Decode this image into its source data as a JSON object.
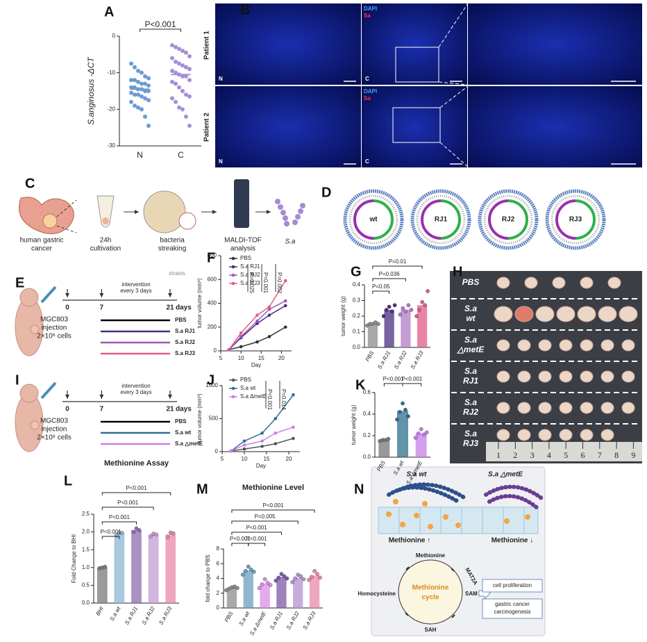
{
  "panel_letters": [
    "A",
    "B",
    "C",
    "D",
    "E",
    "F",
    "G",
    "H",
    "I",
    "J",
    "K",
    "L",
    "M",
    "N"
  ],
  "chart_data": [
    {
      "type": "strip",
      "ylabel": "S.anginosus -ΔCT",
      "categories": [
        "N",
        "C"
      ],
      "colors": [
        "#6b9bd2",
        "#a58fd6"
      ],
      "points": [
        [
          -7.5,
          -8.5,
          -9.5,
          -10,
          -11,
          -11.5,
          -12,
          -12,
          -12.5,
          -13,
          -13,
          -13.5,
          -14,
          -14,
          -14.5,
          -14.5,
          -15,
          -15,
          -15.5,
          -16,
          -16,
          -16.5,
          -17,
          -17.5,
          -18,
          -19,
          -19.5,
          -20,
          -22,
          -24.5
        ],
        [
          -2.5,
          -3,
          -3.5,
          -4,
          -4.5,
          -5.5,
          -6,
          -7,
          -7.5,
          -8,
          -8.5,
          -9,
          -9.5,
          -10,
          -10.5,
          -11,
          -11,
          -12,
          -12.5,
          -13,
          -14,
          -15,
          -16,
          -16.5,
          -17,
          -18,
          -19.5,
          -20,
          -22,
          -24.5
        ]
      ],
      "means": [
        -14.5,
        -10.5
      ],
      "ylim": [
        -30,
        0
      ],
      "yticks": [
        0,
        -10,
        -20,
        -30
      ],
      "brackets": [
        {
          "label": "P<0.001",
          "pair": [
            0,
            1
          ]
        }
      ]
    },
    {
      "type": "line",
      "ylabel": "tumor volume (mm³)",
      "xlabel": "Day",
      "x": [
        7,
        10,
        14,
        17,
        21
      ],
      "xlim": [
        5,
        22.5
      ],
      "xticks": [
        5,
        10,
        15,
        20
      ],
      "ylim": [
        0,
        800
      ],
      "yticks": [
        0,
        200,
        400,
        600,
        800
      ],
      "series": [
        {
          "name": "PBS",
          "color": "#333333",
          "values": [
            10,
            35,
            75,
            120,
            200
          ]
        },
        {
          "name": "S.a RJ1",
          "color": "#4b2d7f",
          "values": [
            10,
            110,
            230,
            300,
            380
          ]
        },
        {
          "name": "S.a RJ2",
          "color": "#9b59b6",
          "values": [
            10,
            120,
            250,
            350,
            420
          ]
        },
        {
          "name": "S.a RJ3",
          "color": "#e05c8a",
          "values": [
            10,
            150,
            300,
            370,
            590
          ]
        }
      ],
      "annotations": [
        "P=0.025",
        "P<0.001",
        "P=0.002"
      ]
    },
    {
      "type": "bar",
      "ylabel": "tumor weight (g)",
      "categories": [
        "PBS",
        "S.a RJ1",
        "S.a RJ2",
        "S.a RJ3"
      ],
      "colors": [
        "#8c8c8c",
        "#4b2d7f",
        "#b07cc6",
        "#e05c8a"
      ],
      "values": [
        0.15,
        0.24,
        0.24,
        0.27
      ],
      "points": [
        [
          0.14,
          0.15,
          0.15,
          0.16,
          0.15
        ],
        [
          0.2,
          0.24,
          0.26,
          0.23,
          0.27
        ],
        [
          0.21,
          0.25,
          0.23,
          0.27,
          0.24
        ],
        [
          0.2,
          0.24,
          0.29,
          0.27,
          0.36
        ]
      ],
      "ylim": [
        0,
        0.4
      ],
      "yticks": [
        {
          "value": 0,
          "label": "0.0"
        },
        0.1,
        0.2,
        0.3,
        0.4
      ],
      "brackets": [
        {
          "label": "P=0.05",
          "pair": [
            0,
            1
          ]
        },
        {
          "label": "P=0.036",
          "pair": [
            0,
            2
          ]
        },
        {
          "label": "P=0.01",
          "pair": [
            0,
            3
          ]
        }
      ]
    },
    {
      "type": "line",
      "ylabel": "tumor volume (mm³)",
      "xlabel": "Day",
      "x": [
        7,
        10,
        14,
        17,
        21
      ],
      "xlim": [
        5,
        22.5
      ],
      "xticks": [
        5,
        10,
        15,
        20
      ],
      "ylim": [
        0,
        1000
      ],
      "yticks": [
        0,
        500,
        1000
      ],
      "series": [
        {
          "name": "PBS",
          "color": "#555555",
          "values": [
            10,
            40,
            80,
            120,
            200
          ]
        },
        {
          "name": "S.a wt",
          "color": "#2e6f8e",
          "values": [
            10,
            160,
            280,
            500,
            860
          ]
        },
        {
          "name": "S.a ΔmetE",
          "color": "#c77dea",
          "values": [
            10,
            100,
            160,
            280,
            370
          ]
        }
      ],
      "annotations": [
        "P<0.001",
        "P=0.014"
      ]
    },
    {
      "type": "bar",
      "ylabel": "tumor weight (g)",
      "categories": [
        "PBS",
        "S.a wt",
        "S.a ΔmetE"
      ],
      "colors": [
        "#777777",
        "#2e6f8e",
        "#c77dea"
      ],
      "values": [
        0.16,
        0.43,
        0.22
      ],
      "points": [
        [
          0.15,
          0.16,
          0.16,
          0.17
        ],
        [
          0.35,
          0.42,
          0.5,
          0.44,
          0.38
        ],
        [
          0.18,
          0.22,
          0.26,
          0.21,
          0.23
        ]
      ],
      "ylim": [
        0,
        0.6
      ],
      "yticks": [
        {
          "value": 0,
          "label": "0.0"
        },
        0.2,
        0.4,
        0.6
      ],
      "brackets": [
        {
          "label": "P<0.001",
          "pair": [
            0,
            1
          ]
        },
        {
          "label": "P<0.001",
          "pair": [
            1,
            2
          ]
        }
      ]
    },
    {
      "type": "bar",
      "title": "Methionine Assay",
      "ylabel": "Fold Change to BHI",
      "categories": [
        "BHI",
        "S.a wt",
        "S.a RJ1",
        "S.a RJ2",
        "S.a RJ3"
      ],
      "colors": [
        "#7a7a7a",
        "#8fb5d0",
        "#8f6bb0",
        "#c39bd3",
        "#e88aa8"
      ],
      "values": [
        1.0,
        1.95,
        2.05,
        1.92,
        1.93
      ],
      "points": [
        [
          0.98,
          1.0,
          1.02
        ],
        [
          1.9,
          1.98,
          1.97
        ],
        [
          2.0,
          2.1,
          2.05
        ],
        [
          1.88,
          1.95,
          1.93
        ],
        [
          1.85,
          1.98,
          1.96
        ]
      ],
      "ylim": [
        0,
        2.5
      ],
      "yticks": [
        {
          "value": 0,
          "label": "0.0"
        },
        0.5,
        {
          "value": 1,
          "label": "1.0"
        },
        1.5,
        {
          "value": 2,
          "label": "2.0"
        },
        2.5
      ],
      "brackets": [
        {
          "label": "P<0.001",
          "pair": [
            0,
            1
          ]
        },
        {
          "label": "P<0.001",
          "pair": [
            0,
            2
          ]
        },
        {
          "label": "P<0.001",
          "pair": [
            0,
            3
          ]
        },
        {
          "label": "P<0.001",
          "pair": [
            0,
            4
          ]
        }
      ]
    },
    {
      "type": "bar",
      "title": "Methionine Level",
      "ylabel": "fold change to PBS",
      "categories": [
        "PBS",
        "S.a wt",
        "S.a ΔmetE",
        "S.a RJ1",
        "S.a RJ2",
        "S.a RJ3"
      ],
      "colors": [
        "#8c8c8c",
        "#6a9fc0",
        "#d98ee8",
        "#7b5aa6",
        "#b491cf",
        "#e88aa8"
      ],
      "values": [
        2.7,
        5.1,
        3.3,
        4.2,
        4.1,
        4.4
      ],
      "points": [
        [
          2.4,
          2.6,
          2.8,
          2.9,
          2.7
        ],
        [
          4.5,
          5.0,
          5.6,
          5.2,
          4.9
        ],
        [
          2.7,
          3.2,
          3.9,
          3.4,
          3.1
        ],
        [
          3.7,
          4.1,
          4.6,
          4.3,
          4.0
        ],
        [
          3.5,
          4.0,
          4.5,
          4.3,
          3.9
        ],
        [
          3.8,
          4.2,
          5.0,
          4.6,
          4.1
        ]
      ],
      "ylim": [
        0,
        8
      ],
      "yticks": [
        0,
        2,
        4,
        6,
        8
      ],
      "brackets": [
        {
          "label": "P<0.001",
          "pair": [
            0,
            1
          ]
        },
        {
          "label": "P<0.001",
          "pair": [
            1,
            2
          ]
        },
        {
          "label": "P<0.001",
          "pair": [
            0,
            3
          ]
        },
        {
          "label": "P=0.005",
          "pair": [
            0,
            4
          ]
        },
        {
          "label": "P<0.001",
          "pair": [
            0,
            5
          ]
        }
      ]
    }
  ],
  "panel_b": {
    "rows": [
      "Patient 1",
      "Patient 2"
    ],
    "stains": [
      "DAPI",
      "Sa"
    ],
    "regions": [
      "N",
      "C"
    ]
  },
  "panel_c": {
    "steps": [
      [
        "human gastric",
        "cancer"
      ],
      [
        "24h",
        "cultivation"
      ],
      [
        "bacteria",
        "streaking"
      ],
      [
        "MALDI-TOF",
        "analysis"
      ],
      [
        "S.a"
      ]
    ]
  },
  "panel_d": {
    "genomes": [
      "wt",
      "RJ1",
      "RJ2",
      "RJ3"
    ]
  },
  "panel_e": {
    "cut": "strains",
    "days": [
      0,
      7,
      21
    ],
    "unit": "days",
    "note": [
      "intervention",
      "every 3 days"
    ],
    "injection": [
      "MGC803",
      "injection",
      "2×10⁶ cells"
    ],
    "groups": [
      {
        "name": "PBS",
        "color": "#000000"
      },
      {
        "name": "S.a RJ1",
        "color": "#4b2d7f"
      },
      {
        "name": "S.a RJ2",
        "color": "#9b59b6"
      },
      {
        "name": "S.a RJ3",
        "color": "#e05c8a"
      }
    ]
  },
  "panel_i": {
    "days": [
      0,
      7,
      21
    ],
    "unit": "days",
    "note": [
      "intervention",
      "every 3 days"
    ],
    "injection": [
      "MGC803",
      "injection",
      "2×10⁶ cells"
    ],
    "groups": [
      {
        "name": "PBS",
        "color": "#000000"
      },
      {
        "name": "S.a wt",
        "color": "#2e6f8e"
      },
      {
        "name": "S.a △metE",
        "color": "#c77dea"
      }
    ]
  },
  "panel_h": {
    "rows": [
      [
        "PBS"
      ],
      [
        "S.a",
        "wt"
      ],
      [
        "S.a",
        "△metE"
      ],
      [
        "S.a",
        "RJ1"
      ],
      [
        "S.a",
        "RJ2"
      ],
      [
        "S.a",
        "RJ3"
      ]
    ],
    "ruler": [
      1,
      2,
      3,
      4,
      5,
      6,
      7,
      8,
      9
    ]
  },
  "panel_n": {
    "strains": [
      "S.a wt",
      "S.a △metE"
    ],
    "levels": [
      "Methionine ↑",
      "Methionine ↓"
    ],
    "cycle": {
      "top": "Methionine",
      "enzyme": "MAT2A",
      "right": "SAM",
      "bottom": "SAH",
      "left": "Homocysteine",
      "center": [
        "Methionine",
        "cycle"
      ]
    },
    "outcomes": [
      [
        "cell proliferation"
      ],
      [
        "gastric cancer",
        "carcinogenesis"
      ]
    ]
  }
}
